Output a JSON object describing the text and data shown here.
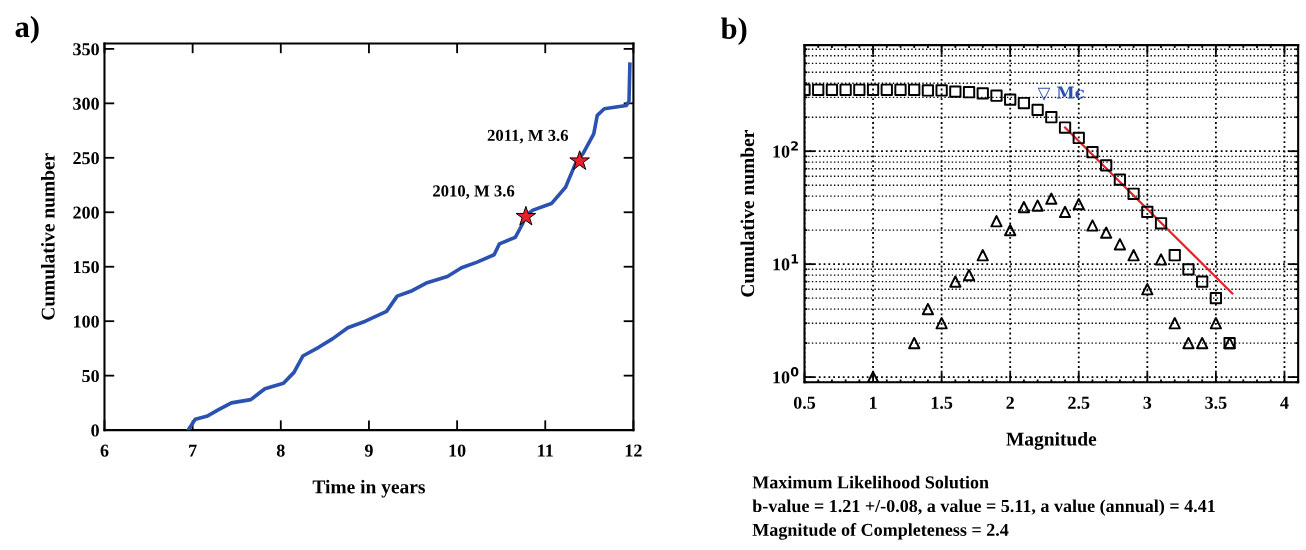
{
  "chart_data": [
    {
      "type": "line",
      "title": "a)",
      "xlabel": "Time in years",
      "ylabel": "Cumulative number",
      "xlim": [
        6,
        12
      ],
      "ylim": [
        0,
        355
      ],
      "xticks": [
        6,
        7,
        8,
        9,
        10,
        11,
        12
      ],
      "yticks": [
        0,
        50,
        100,
        150,
        200,
        250,
        300,
        350
      ],
      "grid": false,
      "series": [
        {
          "color": "#2b52b0",
          "marker": "none",
          "line_style": "solid",
          "x": [
            6.95,
            7.03,
            7.17,
            7.3,
            7.44,
            7.66,
            7.82,
            8.03,
            8.15,
            8.25,
            8.43,
            8.59,
            8.76,
            8.96,
            9.2,
            9.32,
            9.49,
            9.65,
            9.89,
            10.05,
            10.22,
            10.42,
            10.48,
            10.66,
            10.74,
            10.78,
            10.86,
            11.07,
            11.23,
            11.35,
            11.43,
            11.55,
            11.59,
            11.67,
            11.92,
            11.95,
            11.96
          ],
          "values": [
            0,
            10,
            13,
            19,
            25,
            28,
            38,
            43,
            53,
            68,
            76,
            84,
            94,
            100,
            109,
            123,
            128,
            135,
            141,
            149,
            154,
            161,
            171,
            177,
            189,
            197,
            202,
            208,
            223,
            246,
            254,
            272,
            289,
            295,
            298,
            302,
            336
          ]
        },
        {
          "type": "scatter",
          "color": "#e8202a",
          "marker": "star",
          "x": [
            10.78,
            11.39
          ],
          "values": [
            196,
            247
          ]
        }
      ],
      "annotations": [
        {
          "text": "2010, M 3.6",
          "x": 10.78,
          "y": 196
        },
        {
          "text": "2011, M 3.6",
          "x": 11.39,
          "y": 247
        }
      ]
    },
    {
      "type": "scatter",
      "title": "b)",
      "xlabel": "Magnitude",
      "ylabel": "Cumulative number",
      "log": "y",
      "xlim": [
        0.5,
        4.1
      ],
      "ylim": [
        0.9,
        870
      ],
      "xticks": [
        0.5,
        1,
        1.5,
        2,
        2.5,
        3,
        3.5,
        4
      ],
      "yticks": [
        {
          "value": 1,
          "label": "10$^{0}$"
        },
        {
          "value": 10,
          "label": "10$^{1}$"
        },
        {
          "value": 100,
          "label": "10$^{2}$"
        }
      ],
      "grid": true,
      "series": [
        {
          "color": "#000000",
          "marker": "square",
          "x": [
            0.5,
            0.6,
            0.7,
            0.8,
            0.9,
            1.0,
            1.1,
            1.2,
            1.3,
            1.4,
            1.5,
            1.6,
            1.7,
            1.8,
            1.9,
            2.0,
            2.1,
            2.2,
            2.3,
            2.4,
            2.5,
            2.6,
            2.7,
            2.8,
            2.9,
            3.0,
            3.1,
            3.2,
            3.3,
            3.4,
            3.5,
            3.6
          ],
          "values": [
            350,
            350,
            350,
            350,
            350,
            350,
            350,
            350,
            350,
            345,
            345,
            337,
            333,
            325,
            310,
            286,
            267,
            232,
            200,
            162,
            131,
            98,
            75,
            56,
            42,
            29,
            23,
            12,
            9,
            7,
            5,
            2
          ]
        },
        {
          "color": "#000000",
          "marker": "triangle",
          "x": [
            1.0,
            1.3,
            1.4,
            1.5,
            1.6,
            1.7,
            1.8,
            1.9,
            2.0,
            2.1,
            2.2,
            2.3,
            2.4,
            2.5,
            2.6,
            2.7,
            2.8,
            2.9,
            3.0,
            3.1,
            3.2,
            3.3,
            3.4,
            3.5,
            3.6
          ],
          "values": [
            1,
            2,
            4,
            3,
            7,
            8,
            12,
            24,
            20,
            32,
            33,
            38,
            29,
            34,
            22,
            19,
            15,
            12,
            6,
            11,
            3,
            2,
            2,
            3,
            2
          ]
        },
        {
          "type": "line",
          "color": "#e8202a",
          "marker": "none",
          "line_style": "solid",
          "x": [
            2.4,
            3.62
          ],
          "values": [
            162,
            5.5
          ]
        }
      ],
      "annotations": [
        "▽ Mc",
        "Maximum Likelihood Solution",
        "b-value = 1.21 +/-0.08, a value = 5.11, a value (annual) = 4.41",
        "Magnitude of Completeness = 2.4"
      ]
    }
  ]
}
